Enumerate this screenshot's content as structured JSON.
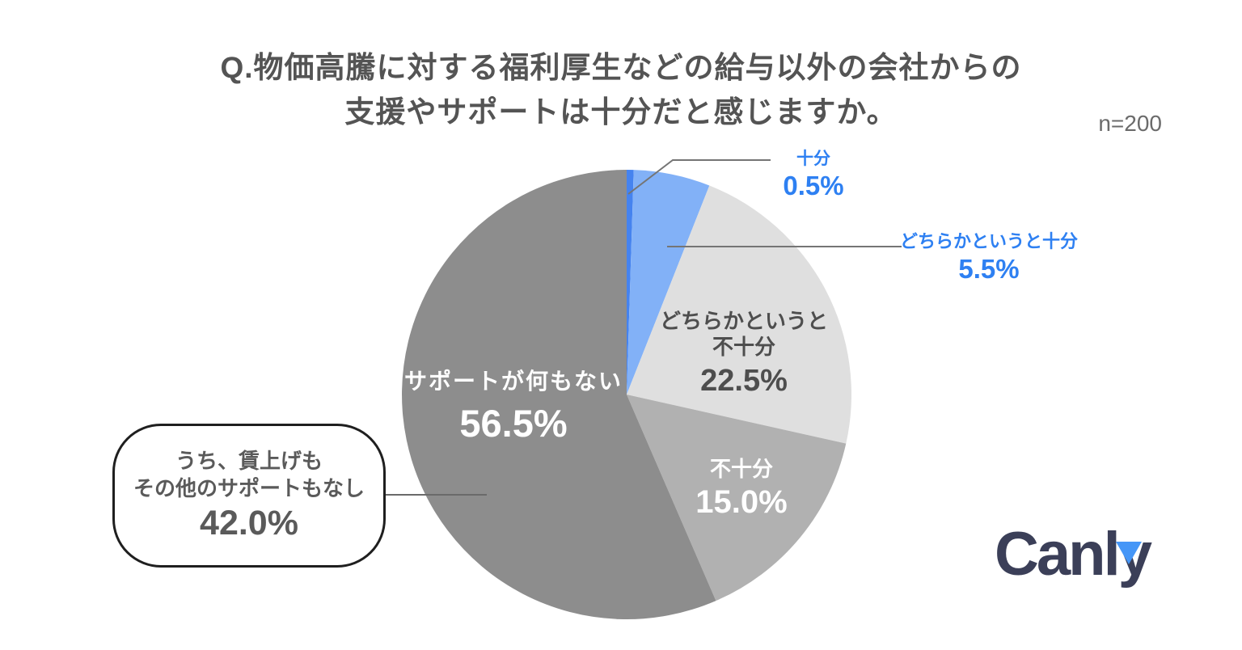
{
  "header": {
    "title_line1": "Q.物価高騰に対する福利厚生などの給与以外の会社からの",
    "title_line2": "支援やサポートは十分だと感じますか。",
    "sample_size": "n=200"
  },
  "chart_data": {
    "type": "pie",
    "title": "Q.物価高騰に対する福利厚生などの給与以外の会社からの支援やサポートは十分だと感じますか。",
    "sample_size_label": "n=200",
    "n": 200,
    "start_angle_deg": 0,
    "direction": "clockwise",
    "slices": [
      {
        "label": "十分",
        "value_pct": 0.5,
        "display_value": "0.5%",
        "color": "#4583ef",
        "label_color": "#2e80f2",
        "label_position": "outside"
      },
      {
        "label": "どちらかというと十分",
        "value_pct": 5.5,
        "display_value": "5.5%",
        "color": "#82b1f7",
        "label_color": "#2e80f2",
        "label_position": "outside"
      },
      {
        "label": "どちらかというと不十分",
        "value_pct": 22.5,
        "display_value": "22.5%",
        "color": "#dfdfdf",
        "label_color": "#4e4e4e",
        "label_position": "inside"
      },
      {
        "label": "不十分",
        "value_pct": 15.0,
        "display_value": "15.0%",
        "color": "#b1b1b1",
        "label_color": "#ffffff",
        "label_position": "inside"
      },
      {
        "label": "サポートが何もない",
        "value_pct": 56.5,
        "display_value": "56.5%",
        "color": "#8d8d8d",
        "label_color": "#ffffff",
        "label_position": "inside"
      }
    ],
    "callout": {
      "line1": "うち、賃上げも",
      "line2": "その他のサポートもなし",
      "display_value": "42.0%",
      "value_pct": 42.0
    }
  },
  "branding": {
    "logo_text": "Canly",
    "logo_color": "#3b3f58",
    "logo_accent_color": "#4596f7"
  }
}
